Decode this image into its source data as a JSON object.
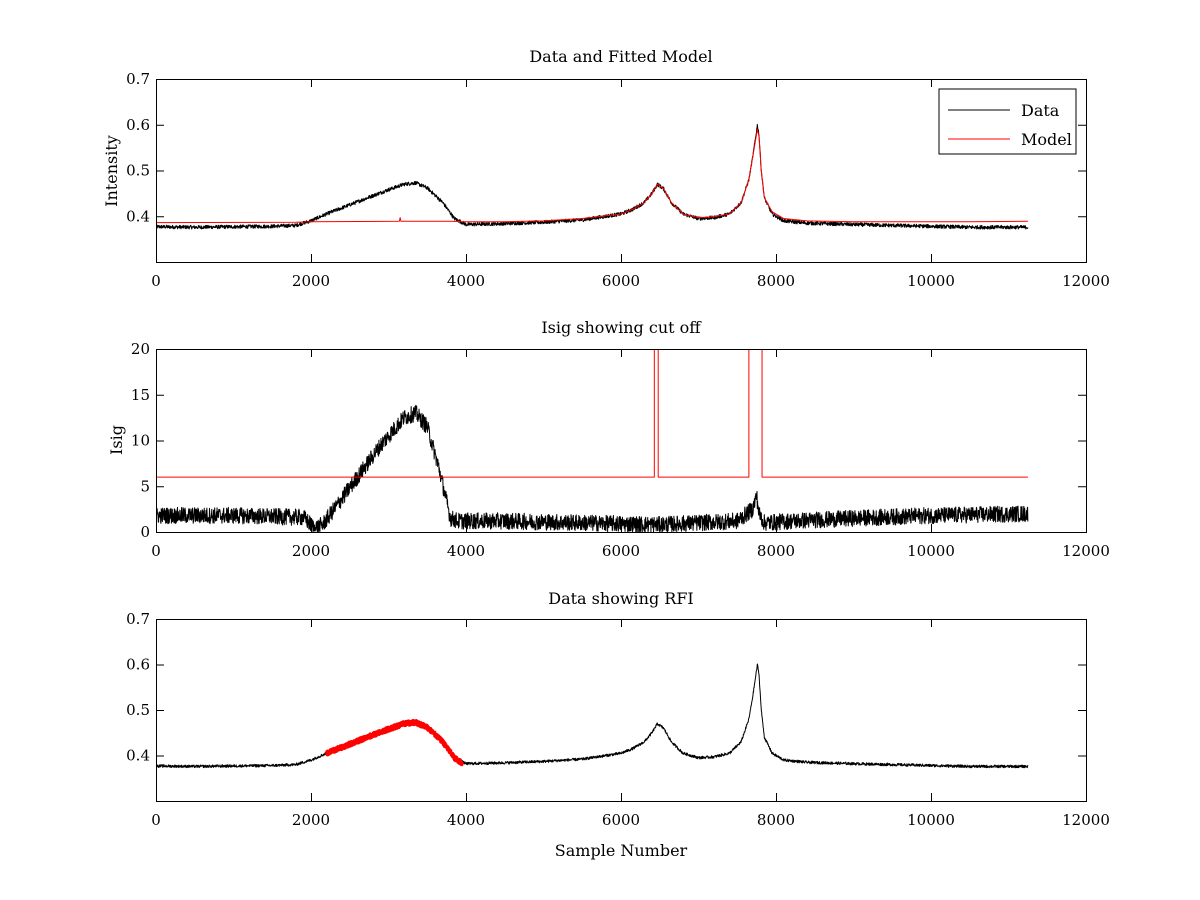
{
  "figure": {
    "background": "#ffffff",
    "colors": {
      "data": "#000000",
      "model": "#ff0000",
      "rfi": "#ff0000"
    }
  },
  "chart_data": [
    {
      "type": "line",
      "title": "Data and Fitted Model",
      "xlabel": "",
      "ylabel": "Intensity",
      "xlim": [
        0,
        12000
      ],
      "ylim": [
        0.3,
        0.7
      ],
      "xticks": [
        0,
        2000,
        4000,
        6000,
        8000,
        10000,
        12000
      ],
      "yticks": [
        0.4,
        0.5,
        0.6,
        0.7
      ],
      "xtick_labels": [
        "0",
        "2000",
        "4000",
        "6000",
        "8000",
        "10000",
        "12000"
      ],
      "ytick_labels": [
        "0.4",
        "0.5",
        "0.6",
        "0.7"
      ],
      "legend": {
        "placement": "top-right",
        "entries": [
          "Data",
          "Model"
        ]
      },
      "series": [
        {
          "name": "Data",
          "color": "#000000",
          "noise": 0.004,
          "x": [
            0,
            500,
            1000,
            1500,
            1800,
            2000,
            2200,
            2500,
            2800,
            3000,
            3200,
            3350,
            3500,
            3700,
            3850,
            4000,
            4500,
            5000,
            5500,
            6000,
            6150,
            6300,
            6400,
            6470,
            6550,
            6650,
            6800,
            7000,
            7200,
            7400,
            7550,
            7650,
            7700,
            7760,
            7780,
            7810,
            7850,
            7950,
            8100,
            8400,
            9000,
            9500,
            10000,
            10500,
            11250
          ],
          "y": [
            0.377,
            0.376,
            0.377,
            0.378,
            0.38,
            0.39,
            0.405,
            0.425,
            0.445,
            0.458,
            0.47,
            0.473,
            0.462,
            0.43,
            0.395,
            0.382,
            0.384,
            0.387,
            0.392,
            0.405,
            0.415,
            0.43,
            0.45,
            0.47,
            0.46,
            0.43,
            0.405,
            0.395,
            0.397,
            0.405,
            0.43,
            0.48,
            0.53,
            0.6,
            0.58,
            0.5,
            0.44,
            0.405,
            0.39,
            0.385,
            0.382,
            0.38,
            0.378,
            0.376,
            0.376
          ]
        },
        {
          "name": "Model",
          "color": "#ff0000",
          "noise": 0,
          "x": [
            0,
            1800,
            2000,
            3140,
            3150,
            3160,
            3800,
            4000,
            4500,
            5000,
            5500,
            6000,
            6150,
            6300,
            6400,
            6470,
            6550,
            6650,
            6800,
            7000,
            7200,
            7400,
            7550,
            7650,
            7700,
            7760,
            7780,
            7810,
            7850,
            7950,
            8100,
            8400,
            9000,
            9500,
            10000,
            10500,
            11250
          ],
          "y": [
            0.386,
            0.387,
            0.388,
            0.389,
            0.397,
            0.389,
            0.389,
            0.388,
            0.388,
            0.39,
            0.395,
            0.405,
            0.415,
            0.43,
            0.45,
            0.47,
            0.46,
            0.43,
            0.405,
            0.397,
            0.399,
            0.405,
            0.43,
            0.48,
            0.53,
            0.59,
            0.575,
            0.5,
            0.44,
            0.41,
            0.395,
            0.39,
            0.388,
            0.388,
            0.388,
            0.388,
            0.389
          ]
        }
      ]
    },
    {
      "type": "line",
      "title": "Isig showing cut off",
      "xlabel": "",
      "ylabel": "Isig",
      "xlim": [
        0,
        12000
      ],
      "ylim": [
        0,
        20
      ],
      "xticks": [
        0,
        2000,
        4000,
        6000,
        8000,
        10000,
        12000
      ],
      "yticks": [
        0,
        5,
        10,
        15,
        20
      ],
      "xtick_labels": [
        "0",
        "2000",
        "4000",
        "6000",
        "8000",
        "10000",
        "12000"
      ],
      "ytick_labels": [
        "0",
        "5",
        "10",
        "15",
        "20"
      ],
      "series": [
        {
          "color": "#000000",
          "noise": 0.9,
          "x": [
            0,
            1000,
            1900,
            2050,
            2150,
            2300,
            2600,
            2900,
            3200,
            3350,
            3500,
            3650,
            3800,
            3900,
            4500,
            5500,
            6500,
            7000,
            7500,
            7700,
            7750,
            7780,
            7850,
            8200,
            9000,
            10000,
            11250
          ],
          "y": [
            1.8,
            1.8,
            1.6,
            0.4,
            0.8,
            2.5,
            6.0,
            9.5,
            12.5,
            13.0,
            11.5,
            7.0,
            1.5,
            1.2,
            1.2,
            1.0,
            0.8,
            1.0,
            1.2,
            2.5,
            4.0,
            2.0,
            1.0,
            1.2,
            1.5,
            1.8,
            2.0
          ]
        },
        {
          "color": "#ff0000",
          "noise": 0,
          "x": [
            0,
            6430,
            6430,
            6480,
            6480,
            7650,
            7650,
            7820,
            7820,
            11250
          ],
          "y": [
            6,
            6,
            20,
            20,
            6,
            6,
            20,
            20,
            6,
            6
          ]
        }
      ]
    },
    {
      "type": "line",
      "title": "Data showing RFI",
      "xlabel": "Sample Number",
      "ylabel": "",
      "xlim": [
        0,
        12000
      ],
      "ylim": [
        0.3,
        0.7
      ],
      "xticks": [
        0,
        2000,
        4000,
        6000,
        8000,
        10000,
        12000
      ],
      "yticks": [
        0.4,
        0.5,
        0.6,
        0.7
      ],
      "xtick_labels": [
        "0",
        "2000",
        "4000",
        "6000",
        "8000",
        "10000",
        "12000"
      ],
      "ytick_labels": [
        "0.4",
        "0.5",
        "0.6",
        "0.7"
      ],
      "series": [
        {
          "color": "#000000",
          "noise": 0.003,
          "x": [
            0,
            500,
            1000,
            1500,
            1800,
            2000,
            2200,
            2500,
            2800,
            3000,
            3200,
            3350,
            3500,
            3700,
            3850,
            4000,
            4500,
            5000,
            5500,
            6000,
            6150,
            6300,
            6400,
            6470,
            6550,
            6650,
            6800,
            7000,
            7200,
            7400,
            7550,
            7650,
            7700,
            7760,
            7780,
            7810,
            7850,
            7950,
            8100,
            8400,
            9000,
            9500,
            10000,
            10500,
            11250
          ],
          "y": [
            0.377,
            0.376,
            0.377,
            0.378,
            0.38,
            0.39,
            0.405,
            0.425,
            0.445,
            0.458,
            0.47,
            0.473,
            0.462,
            0.43,
            0.395,
            0.382,
            0.384,
            0.387,
            0.392,
            0.405,
            0.415,
            0.43,
            0.45,
            0.47,
            0.46,
            0.43,
            0.405,
            0.395,
            0.397,
            0.405,
            0.43,
            0.48,
            0.53,
            0.6,
            0.58,
            0.5,
            0.44,
            0.405,
            0.39,
            0.385,
            0.382,
            0.38,
            0.378,
            0.376,
            0.376
          ]
        },
        {
          "color": "#ff0000",
          "noise": 0.005,
          "thick": true,
          "x": [
            2200,
            2500,
            2800,
            3000,
            3200,
            3350,
            3500,
            3700,
            3850,
            3950
          ],
          "y": [
            0.405,
            0.425,
            0.445,
            0.458,
            0.47,
            0.473,
            0.462,
            0.43,
            0.395,
            0.383
          ]
        }
      ]
    }
  ]
}
